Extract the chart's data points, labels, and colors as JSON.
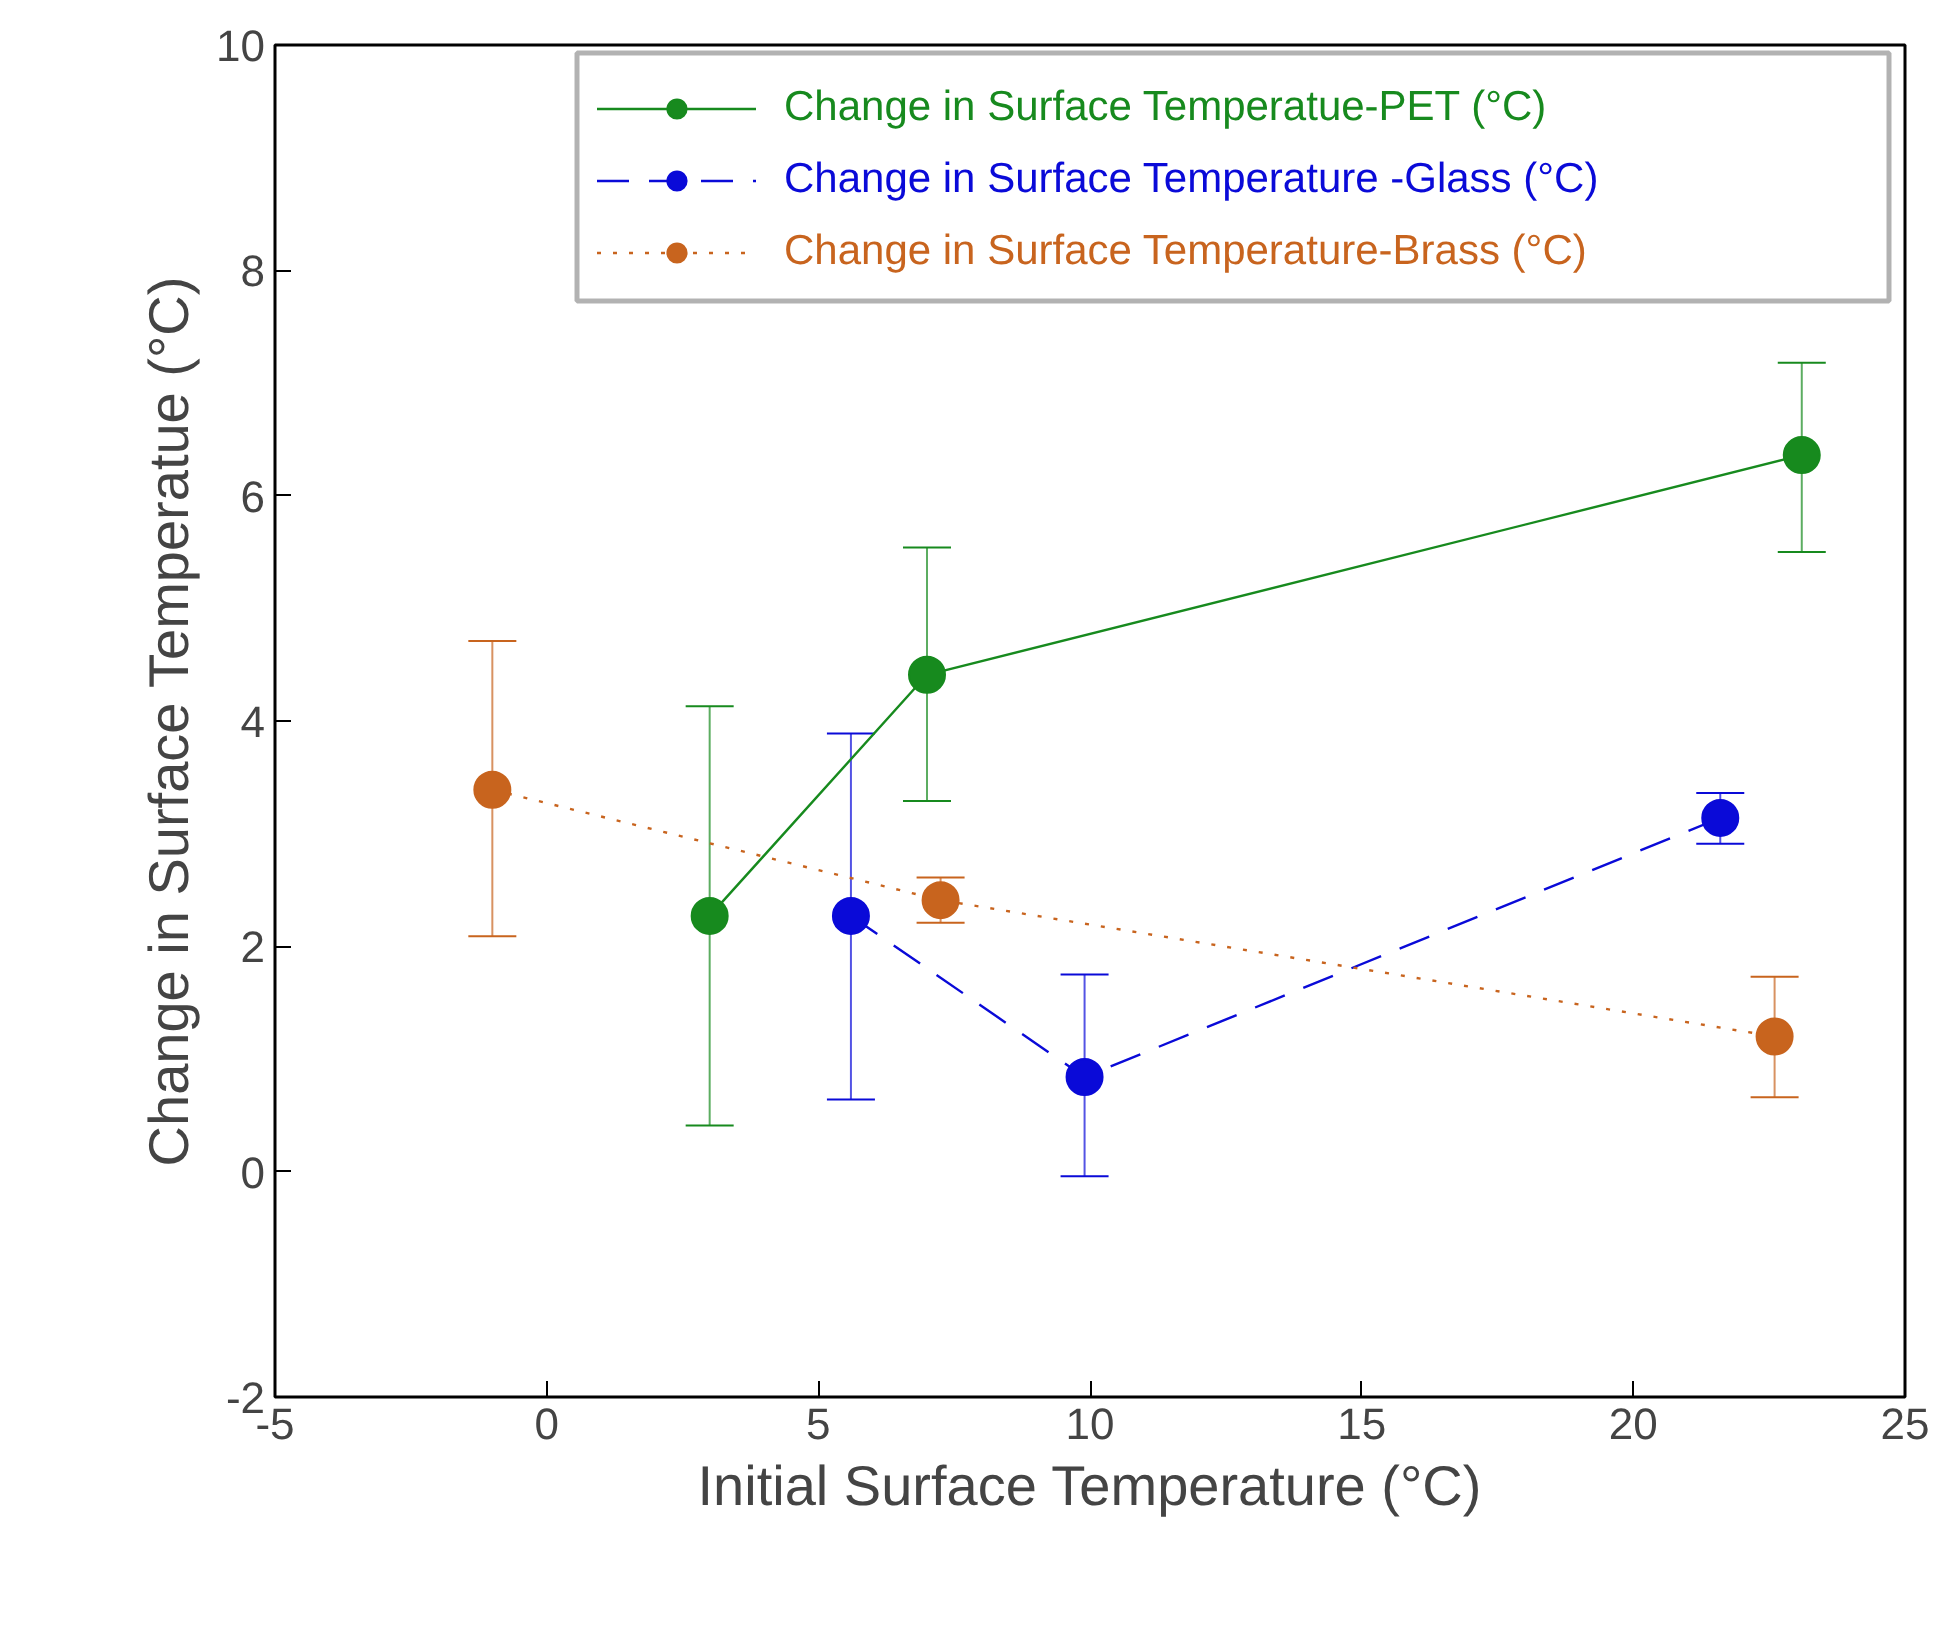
{
  "chart_data": {
    "type": "line",
    "xlabel": "Initial Surface Temperature (°C)",
    "ylabel": "Change in Surface Temperatue (°C)",
    "xlim": [
      -5,
      25
    ],
    "xticks": [
      -5,
      0,
      5,
      10,
      15,
      20,
      25
    ],
    "ylim": [
      -2,
      10
    ],
    "yticks": [
      -2,
      0,
      2,
      4,
      6,
      8,
      10
    ],
    "grid": false,
    "legend": "top right",
    "marker": "circle",
    "series": [
      {
        "name": "Change in Surface Temperatue-PET (°C)",
        "color": "#178a1e",
        "line_style": "solid",
        "x": [
          3.0,
          7.0,
          23.1
        ],
        "values": [
          2.27,
          4.41,
          6.36
        ],
        "errors": [
          [
            0.41,
            4.13
          ],
          [
            3.29,
            5.54
          ],
          [
            5.5,
            7.18
          ]
        ]
      },
      {
        "name": "Change in Surface Temperature -Glass (°C)",
        "color": "#0a0ad8",
        "line_style": "dashed",
        "x": [
          5.6,
          9.9,
          21.6
        ],
        "values": [
          2.27,
          0.84,
          3.14
        ],
        "errors": [
          [
            0.64,
            3.89
          ],
          [
            -0.04,
            1.75
          ],
          [
            2.91,
            3.36
          ]
        ]
      },
      {
        "name": "Change in Surface Temperature-Brass (°C)",
        "color": "#c8641e",
        "line_style": "dotted",
        "x": [
          -1.0,
          7.25,
          22.6
        ],
        "values": [
          3.39,
          2.41,
          1.2
        ],
        "errors": [
          [
            2.09,
            4.71
          ],
          [
            2.21,
            2.61
          ],
          [
            0.66,
            1.73
          ]
        ]
      }
    ]
  }
}
